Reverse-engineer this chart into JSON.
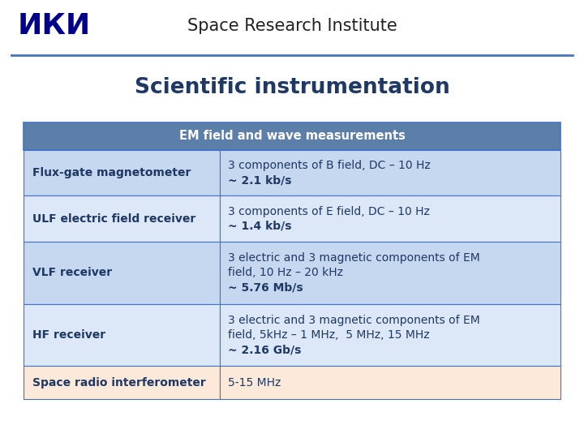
{
  "title": "Scientific instrumentation",
  "header_title": "Space Research Institute",
  "table_header": "EM field and wave measurements",
  "table_header_bg": "#5b7fa8",
  "table_header_fg": "#ffffff",
  "rows": [
    {
      "instrument": "Flux-gate magnetometer",
      "description_lines": [
        {
          "text": "3 components of B field, DC – 10 Hz",
          "bold": false
        },
        {
          "text": "~ 2.1 kb/s",
          "bold": true
        }
      ],
      "bg": "#c5d8f0"
    },
    {
      "instrument": "ULF electric field receiver",
      "description_lines": [
        {
          "text": "3 components of E field, DC – 10 Hz",
          "bold": false
        },
        {
          "text": "~ 1.4 kb/s",
          "bold": true
        }
      ],
      "bg": "#dce8f8"
    },
    {
      "instrument": "VLF receiver",
      "description_lines": [
        {
          "text": "3 electric and 3 magnetic components of EM",
          "bold": false
        },
        {
          "text": "field, 10 Hz – 20 kHz",
          "bold": false
        },
        {
          "text": "~ 5.76 Mb/s",
          "bold": true
        }
      ],
      "bg": "#c5d8f0"
    },
    {
      "instrument": "HF receiver",
      "description_lines": [
        {
          "text": "3 electric and 3 magnetic components of EM",
          "bold": false
        },
        {
          "text": "field, 5kHz – 1 MHz,  5 MHz, 15 MHz",
          "bold": false
        },
        {
          "text": "~ 2.16 Gb/s",
          "bold": true
        }
      ],
      "bg": "#dce8f8"
    },
    {
      "instrument": "Space radio interferometer",
      "description_lines": [
        {
          "text": "5-15 MHz",
          "bold": false
        }
      ],
      "bg": "#fde9d9"
    }
  ],
  "col_split": 0.365,
  "bg_color": "#ffffff",
  "border_color": "#4472c4",
  "text_color": "#1f3864",
  "title_color": "#1f3864",
  "header_line_color": "#4472c4",
  "iki_text": "ИКИ",
  "iki_color": "#00008b"
}
